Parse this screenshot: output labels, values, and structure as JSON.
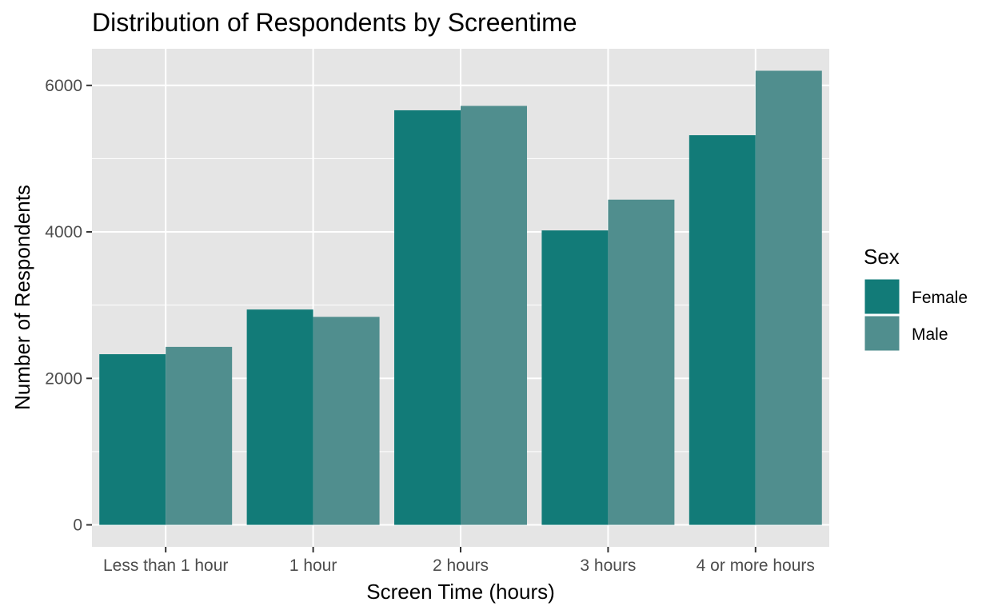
{
  "chart_data": {
    "type": "bar",
    "title": "Distribution of Respondents by Screentime",
    "xlabel": "Screen Time (hours)",
    "ylabel": "Number of Respondents",
    "categories": [
      "Less than 1 hour",
      "1 hour",
      "2 hours",
      "3 hours",
      "4 or more hours"
    ],
    "series": [
      {
        "name": "Female",
        "color": "#127B78",
        "values": [
          2330,
          2940,
          5660,
          4020,
          5320
        ]
      },
      {
        "name": "Male",
        "color": "#508E8E",
        "values": [
          2430,
          2840,
          5720,
          4440,
          6200
        ]
      }
    ],
    "ylim": [
      -300,
      6500
    ],
    "yticks": [
      0,
      2000,
      4000,
      6000
    ],
    "grid": true,
    "legend": {
      "title": "Sex",
      "placement": "right"
    },
    "colors": {
      "panel": "#E5E5E5",
      "grid": "#FFFFFF"
    }
  }
}
